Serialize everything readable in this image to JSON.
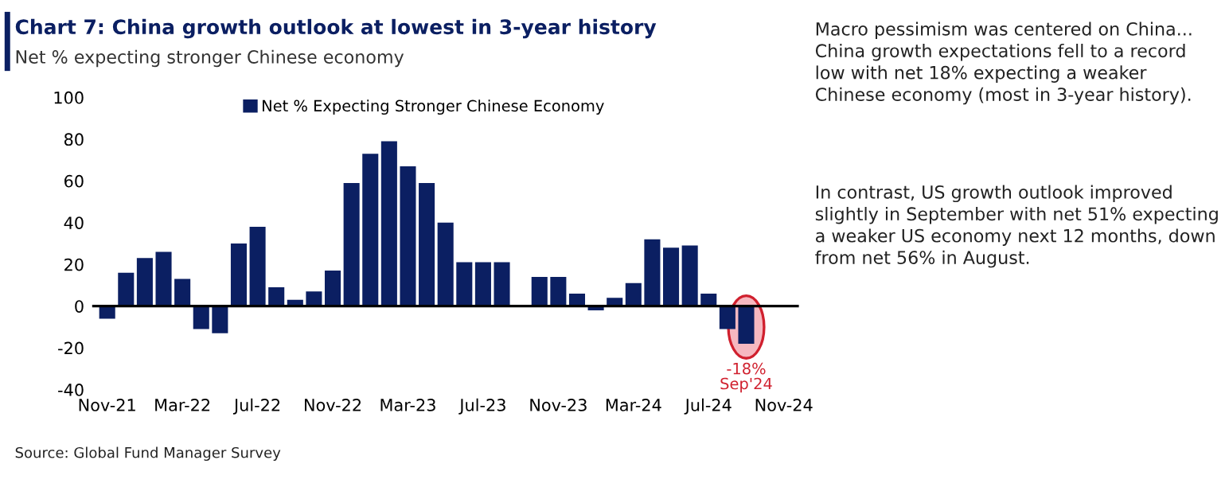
{
  "chart_data": {
    "type": "bar",
    "title": "Chart 7: China growth outlook at lowest in 3-year history",
    "subtitle": "Net % expecting stronger Chinese economy",
    "categories": [
      "Nov-21",
      null,
      null,
      null,
      "Mar-22",
      null,
      null,
      null,
      "Jul-22",
      null,
      null,
      null,
      "Nov-22",
      null,
      null,
      null,
      "Mar-23",
      null,
      null,
      null,
      "Jul-23",
      null,
      null,
      null,
      "Nov-23",
      null,
      null,
      null,
      "Mar-24",
      null,
      null,
      null,
      "Jul-24",
      null,
      null,
      null,
      "Nov-24"
    ],
    "series": [
      {
        "name": "Net % Expecting Stronger Chinese Economy",
        "color": "#0b1f62",
        "values": [
          -6,
          16,
          23,
          26,
          13,
          -11,
          -13,
          30,
          38,
          9,
          3,
          7,
          17,
          59,
          73,
          79,
          67,
          59,
          40,
          21,
          21,
          21,
          null,
          14,
          14,
          6,
          -2,
          4,
          11,
          32,
          28,
          29,
          6,
          -11,
          -18,
          null,
          null
        ]
      }
    ],
    "ylim": [
      -40,
      100
    ],
    "yticks": [
      -40,
      -20,
      0,
      20,
      40,
      60,
      80,
      100
    ],
    "grid": false,
    "ref_lines": [
      {
        "axis": "y",
        "value": 0,
        "color": "#000000"
      }
    ],
    "legend": "top",
    "annotations": [
      {
        "text": "-18%\nSep'24",
        "y": -18
      },
      "Source: Global Fund Manager Survey",
      "Macro pessimism was centered on China...\nChina growth expectations fell to a record\nlow with net 18% expecting a weaker\nChinese economy (most in 3-year history).",
      "In contrast, US growth outlook improved\nslightly in September with net 51% expecting\na weaker US economy next 12 months, down\nfrom net 56% in August."
    ]
  }
}
